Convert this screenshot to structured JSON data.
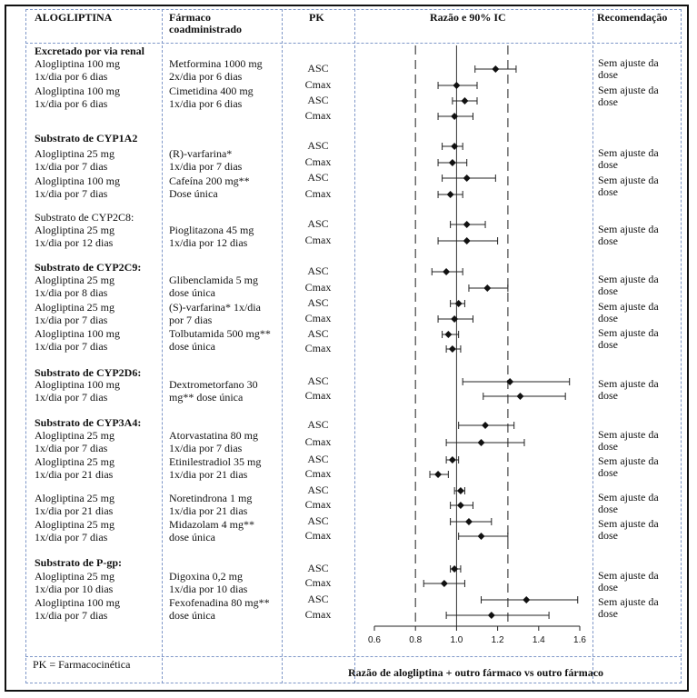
{
  "header": {
    "drug": "ALOGLIPTINA",
    "coadmin_line1": "Fármaco",
    "coadmin_line2": "coadministrado",
    "pk": "PK",
    "ratio": "Razão e 90% IC",
    "recommendation": "Recomendação"
  },
  "sections": [
    {
      "title": "Excretado por via renal",
      "bold": true,
      "rows": [
        {
          "drug": [
            "Alogliptina 100 mg",
            "1x/dia por 6 dias"
          ],
          "coadmin": [
            "Metformina 1000 mg",
            "2x/dia por 6 dias"
          ],
          "rec": [
            "Sem ajuste da",
            "dose"
          ]
        },
        {
          "drug": [
            "Alogliptina 100 mg",
            "1x/dia por 6 dias"
          ],
          "coadmin": [
            "Cimetidina 400 mg",
            "1x/dia por 6 dias"
          ],
          "rec": [
            "Sem ajuste da",
            "dose"
          ]
        }
      ]
    },
    {
      "title": "Substrato de CYP1A2",
      "bold": true,
      "rows": [
        {
          "drug": [
            "Alogliptina 25 mg",
            "1x/dia por 7 dias"
          ],
          "coadmin": [
            "(R)-varfarina*",
            "1x/dia por 7 dias"
          ],
          "rec": [
            "Sem ajuste da",
            "dose"
          ]
        },
        {
          "drug": [
            "Alogliptina 100 mg",
            "1x/dia por 7 dias"
          ],
          "coadmin": [
            "Cafeína 200 mg**",
            "Dose única"
          ],
          "rec": [
            "Sem ajuste da",
            "dose"
          ]
        }
      ]
    },
    {
      "title": "Substrato de CYP2C8:",
      "bold": false,
      "rows": [
        {
          "drug": [
            "Alogliptina 25 mg",
            "1x/dia por 12 dias"
          ],
          "coadmin": [
            "Pioglitazona 45 mg",
            "1x/dia por 12 dias"
          ],
          "rec": [
            "Sem ajuste da",
            "dose"
          ]
        }
      ]
    },
    {
      "title": "Substrato de CYP2C9:",
      "bold": true,
      "rows": [
        {
          "drug": [
            "Alogliptina 25 mg",
            "1x/dia por 8 dias"
          ],
          "coadmin": [
            "Glibenclamida 5 mg",
            "dose única"
          ],
          "rec": [
            "Sem ajuste da",
            "dose"
          ]
        },
        {
          "drug": [
            "Alogliptina 25 mg",
            "1x/dia por 7 dias"
          ],
          "coadmin": [
            "(S)-varfarina* 1x/dia",
            "por 7 dias"
          ],
          "rec": [
            "Sem ajuste da",
            "dose"
          ]
        },
        {
          "drug": [
            "Alogliptina 100 mg",
            "1x/dia por 7 dias"
          ],
          "coadmin": [
            "Tolbutamida 500 mg**",
            "dose única"
          ],
          "rec": [
            "Sem ajuste da",
            "dose"
          ]
        }
      ]
    },
    {
      "title": "Substrato de CYP2D6:",
      "bold": true,
      "rows": [
        {
          "drug": [
            "Alogliptina 100 mg",
            "1x/dia por 7 dias"
          ],
          "coadmin": [
            "Dextrometorfano 30",
            "mg** dose única"
          ],
          "rec": [
            "Sem ajuste da",
            "dose"
          ]
        }
      ]
    },
    {
      "title": "Substrato de CYP3A4:",
      "bold": true,
      "rows": [
        {
          "drug": [
            "Alogliptina 25 mg",
            "1x/dia por 7 dias"
          ],
          "coadmin": [
            "Atorvastatina 80 mg",
            "1x/dia por 7 dias"
          ],
          "rec": [
            "Sem ajuste da",
            "dose"
          ]
        },
        {
          "drug": [
            "Alogliptina 25 mg",
            "1x/dia por 21 dias"
          ],
          "coadmin": [
            "Etinilestradiol 35 mg",
            "1x/dia por 21 dias"
          ],
          "rec": [
            "Sem ajuste da",
            "dose"
          ]
        },
        {
          "drug": [
            "Alogliptina 25 mg",
            "1x/dia por 21 dias"
          ],
          "coadmin": [
            "Noretindrona 1 mg",
            "1x/dia por 21 dias"
          ],
          "rec": [
            "Sem ajuste da",
            "dose"
          ]
        },
        {
          "drug": [
            "Alogliptina 25 mg",
            "1x/dia por 7 dias"
          ],
          "coadmin": [
            "Midazolam 4 mg**",
            "dose única"
          ],
          "rec": [
            "Sem ajuste da",
            "dose"
          ]
        }
      ]
    },
    {
      "title": "Substrato de P-gp:",
      "bold": true,
      "rows": [
        {
          "drug": [
            "Alogliptina 25 mg",
            "1x/dia por 10 dias"
          ],
          "coadmin": [
            "Digoxina 0,2 mg",
            "1x/dia por 10 dias"
          ],
          "rec": [
            "Sem ajuste da",
            "dose"
          ]
        },
        {
          "drug": [
            "Alogliptina 100 mg",
            "1x/dia por 7 dias"
          ],
          "coadmin": [
            "Fexofenadina 80 mg**",
            "dose única"
          ],
          "rec": [
            "Sem ajuste da",
            "dose"
          ]
        }
      ]
    }
  ],
  "footer": {
    "pk_note": "PK = Farmacocinética"
  },
  "chart_data": {
    "type": "scatter",
    "xlabel": "Razão de alogliptina + outro fármaco vs outro fármaco",
    "xlim": [
      0.6,
      1.6
    ],
    "xticks": [
      0.6,
      0.8,
      1.0,
      1.2,
      1.4,
      1.6
    ],
    "xtick_labels": [
      "0.6",
      "0.8",
      "1.0",
      "1.2",
      "1.4",
      "1.6"
    ],
    "reference_lines": [
      0.8,
      1.25
    ],
    "points": [
      {
        "label": "ASC",
        "ratio": 1.19,
        "low": 1.09,
        "high": 1.29
      },
      {
        "label": "Cmax",
        "ratio": 1.0,
        "low": 0.91,
        "high": 1.1
      },
      {
        "label": "ASC",
        "ratio": 1.04,
        "low": 0.98,
        "high": 1.1
      },
      {
        "label": "Cmax",
        "ratio": 0.99,
        "low": 0.91,
        "high": 1.08
      },
      {
        "label": "ASC",
        "ratio": 0.99,
        "low": 0.93,
        "high": 1.03
      },
      {
        "label": "Cmax",
        "ratio": 0.98,
        "low": 0.91,
        "high": 1.05
      },
      {
        "label": "ASC",
        "ratio": 1.05,
        "low": 0.93,
        "high": 1.19
      },
      {
        "label": "Cmax",
        "ratio": 0.97,
        "low": 0.91,
        "high": 1.03
      },
      {
        "label": "ASC",
        "ratio": 1.05,
        "low": 0.97,
        "high": 1.14
      },
      {
        "label": "Cmax",
        "ratio": 1.05,
        "low": 0.91,
        "high": 1.2
      },
      {
        "label": "ASC",
        "ratio": 0.95,
        "low": 0.88,
        "high": 1.03
      },
      {
        "label": "Cmax",
        "ratio": 1.15,
        "low": 1.06,
        "high": 1.25
      },
      {
        "label": "ASC",
        "ratio": 1.01,
        "low": 0.97,
        "high": 1.04
      },
      {
        "label": "Cmax",
        "ratio": 0.99,
        "low": 0.91,
        "high": 1.08
      },
      {
        "label": "ASC",
        "ratio": 0.96,
        "low": 0.93,
        "high": 1.01
      },
      {
        "label": "Cmax",
        "ratio": 0.98,
        "low": 0.95,
        "high": 1.02
      },
      {
        "label": "ASC",
        "ratio": 1.26,
        "low": 1.03,
        "high": 1.55
      },
      {
        "label": "Cmax",
        "ratio": 1.31,
        "low": 1.13,
        "high": 1.53
      },
      {
        "label": "ASC",
        "ratio": 1.14,
        "low": 1.01,
        "high": 1.28
      },
      {
        "label": "Cmax",
        "ratio": 1.12,
        "low": 0.95,
        "high": 1.33
      },
      {
        "label": "ASC",
        "ratio": 0.98,
        "low": 0.95,
        "high": 1.01
      },
      {
        "label": "Cmax",
        "ratio": 0.91,
        "low": 0.87,
        "high": 0.96
      },
      {
        "label": "ASC",
        "ratio": 1.02,
        "low": 0.99,
        "high": 1.04
      },
      {
        "label": "Cmax",
        "ratio": 1.02,
        "low": 0.97,
        "high": 1.08
      },
      {
        "label": "ASC",
        "ratio": 1.06,
        "low": 0.97,
        "high": 1.17
      },
      {
        "label": "Cmax",
        "ratio": 1.12,
        "low": 1.01,
        "high": 1.25
      },
      {
        "label": "ASC",
        "ratio": 0.99,
        "low": 0.97,
        "high": 1.02
      },
      {
        "label": "Cmax",
        "ratio": 0.94,
        "low": 0.84,
        "high": 1.04
      },
      {
        "label": "ASC",
        "ratio": 1.34,
        "low": 1.12,
        "high": 1.59
      },
      {
        "label": "Cmax",
        "ratio": 1.17,
        "low": 0.95,
        "high": 1.45
      }
    ]
  }
}
